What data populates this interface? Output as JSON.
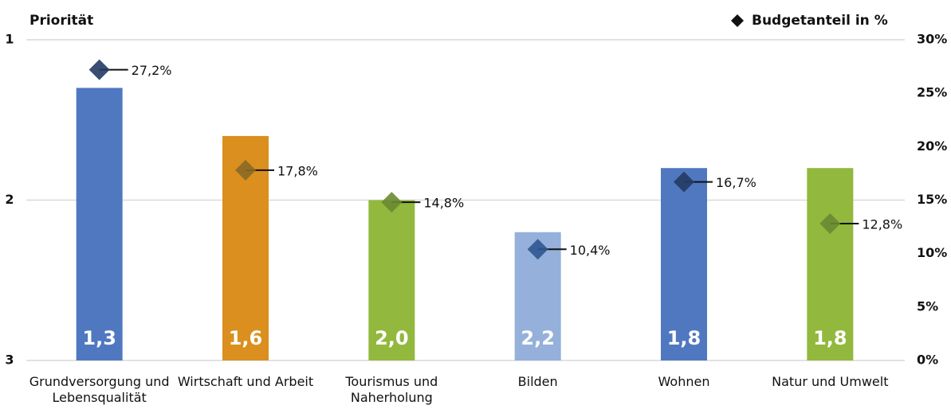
{
  "chart_data": {
    "type": "bar",
    "y_label": "Priorität",
    "categories": [
      "Grundversorgung und Lebensqualität",
      "Wirtschaft und Arbeit",
      "Tourismus und Naherholung",
      "Bilden",
      "Wohnen",
      "Natur und Umwelt"
    ],
    "series": [
      {
        "values": [
          1.3,
          1.6,
          2.0,
          2.2,
          1.8,
          1.8
        ],
        "value_labels": [
          "1,3",
          "1,6",
          "2,0",
          "2,2",
          "1,8",
          "1,8"
        ],
        "colors": [
          "#4f78c0",
          "#db8f1e",
          "#92b83d",
          "#95b0da",
          "#4f78c0",
          "#92b83d"
        ]
      },
      {
        "name": "Budgetanteil in %",
        "axis": "y2",
        "values": [
          27.2,
          17.8,
          14.8,
          10.4,
          16.7,
          12.8
        ],
        "value_labels": [
          "27,2%",
          "17,8%",
          "14,8%",
          "10,4%",
          "16,7%",
          "12,8%"
        ],
        "colors": [
          "#243b63",
          "#8a6a25",
          "#6a8a32",
          "#2f5690",
          "#243b63",
          "#6a8a32"
        ]
      }
    ],
    "ylim": [
      3,
      1
    ],
    "yticks": [
      1,
      2,
      3
    ],
    "y2lim": [
      0,
      30
    ],
    "y2ticks": [
      {
        "value": 0,
        "label": "0%"
      },
      {
        "value": 5,
        "label": "5%"
      },
      {
        "value": 10,
        "label": "10%"
      },
      {
        "value": 15,
        "label": "15%"
      },
      {
        "value": 20,
        "label": "20%"
      },
      {
        "value": 25,
        "label": "25%"
      },
      {
        "value": 30,
        "label": "30%"
      }
    ],
    "grid": true
  }
}
